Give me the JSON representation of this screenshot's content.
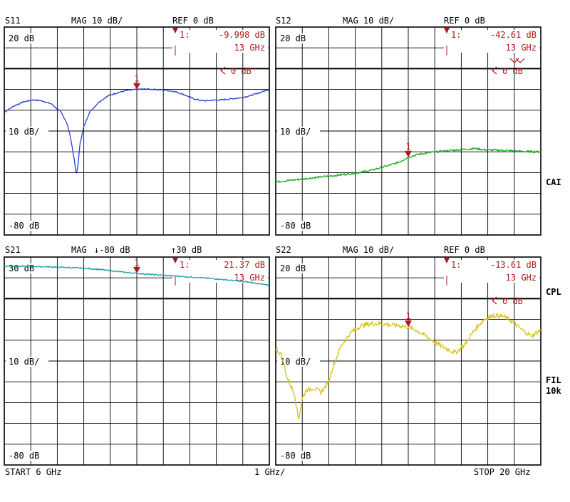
{
  "start_label": "START  6 GHz",
  "span_label": "1 GHz/",
  "stop_label": "STOP 20 GHz",
  "side_labels": [
    {
      "text": "CAI",
      "color": "#0aa000"
    },
    {
      "text": "CPL",
      "color": "#0aa000"
    },
    {
      "text": "FIL",
      "color": "#0aa000"
    },
    {
      "text": "10k",
      "color": "#0aa000"
    }
  ],
  "chart_data": [
    {
      "type": "line",
      "param": "S11",
      "format_label": "MAG 10 dB/",
      "ref_label": "REF 0 dB",
      "top_label": "20 dB",
      "mid_label": "10 dB/",
      "bottom_label": "-80 dB",
      "ref_marker_label": "0 dB",
      "marker_label": "1:",
      "marker_value": "-9.998 dB",
      "marker_freq": "13 GHz",
      "marker_number": "1",
      "color": "#2a3fd4",
      "ylim": [
        -80,
        20
      ],
      "xlim": [
        6,
        20
      ],
      "marker": {
        "x": 13,
        "y": -9.998
      },
      "x": [
        6,
        6.5,
        7,
        7.5,
        8,
        8.5,
        9,
        9.3,
        9.5,
        9.7,
        9.8,
        9.9,
        10.0,
        10.2,
        10.5,
        11,
        11.5,
        12,
        12.5,
        13,
        13.5,
        14,
        14.5,
        15,
        15.5,
        16,
        16.5,
        17,
        17.5,
        18,
        18.5,
        19,
        19.5,
        20
      ],
      "y": [
        -21,
        -18,
        -16,
        -15,
        -15.5,
        -17,
        -21,
        -26,
        -33,
        -44,
        -51,
        -46,
        -36,
        -28,
        -21,
        -16,
        -13,
        -11.5,
        -10.5,
        -10,
        -9.8,
        -10,
        -10.3,
        -11,
        -12.5,
        -14.5,
        -15.5,
        -15.2,
        -15,
        -14.5,
        -14,
        -13,
        -11.5,
        -10
      ]
    },
    {
      "type": "line",
      "param": "S12",
      "format_label": "MAG 10 dB/",
      "ref_label": "REF 0 dB",
      "top_label": "20 dB",
      "mid_label": "10 dB/",
      "bottom_label": "-80 dB",
      "ref_marker_label": "0 dB",
      "marker_label": "1:",
      "marker_value": "-42.61 dB",
      "marker_freq": "13 GHz",
      "marker_number": "1",
      "color": "#12a81a",
      "ylim": [
        -80,
        20
      ],
      "xlim": [
        6,
        20
      ],
      "marker": {
        "x": 13,
        "y": -42.61
      },
      "x": [
        6,
        7,
        8,
        9,
        10,
        11,
        12,
        12.5,
        13,
        13.5,
        14,
        15,
        16,
        16.5,
        17,
        18,
        19,
        20
      ],
      "y": [
        -54.5,
        -53.5,
        -52.5,
        -51.5,
        -50.5,
        -49,
        -46.5,
        -45,
        -42.6,
        -41.3,
        -40.5,
        -39.5,
        -38.8,
        -38.4,
        -39,
        -39.3,
        -39.8,
        -40
      ]
    },
    {
      "type": "line",
      "param": "S21",
      "format_label": "MAG",
      "scale_label": "↓-80 dB",
      "ref_label": "↑30 dB",
      "top_label": "30 dB",
      "mid_label": "10 dB/",
      "bottom_label": "-80 dB",
      "marker_label": "1:",
      "marker_value": "21.37 dB",
      "marker_freq": "13 GHz",
      "marker_number": "1",
      "color": "#12a0a8",
      "ylim": [
        -80,
        30
      ],
      "xlim": [
        6,
        20
      ],
      "marker": {
        "x": 13,
        "y": 21.37
      },
      "x": [
        6,
        7,
        8,
        9,
        10,
        11,
        12,
        13,
        14,
        15,
        16,
        17,
        18,
        19,
        20
      ],
      "y": [
        25.2,
        25.1,
        24.9,
        24.6,
        24.2,
        23.5,
        22.3,
        21.37,
        20.6,
        20.0,
        19.3,
        18.6,
        17.7,
        16.6,
        15.0
      ]
    },
    {
      "type": "line",
      "param": "S22",
      "format_label": "MAG 10 dB/",
      "ref_label": "REF 0 dB",
      "top_label": "20 dB",
      "mid_label": "10 dB/",
      "bottom_label": "-80 dB",
      "ref_marker_label": "0 dB",
      "marker_label": "1:",
      "marker_value": "-13.61 dB",
      "marker_freq": "13 GHz",
      "marker_number": "1",
      "color": "#d9c21a",
      "ylim": [
        -80,
        20
      ],
      "xlim": [
        6,
        20
      ],
      "marker": {
        "x": 13,
        "y": -13.61
      },
      "x": [
        6,
        6.3,
        6.6,
        7.0,
        7.2,
        7.4,
        7.6,
        8.0,
        8.4,
        8.8,
        9.0,
        9.5,
        10,
        10.5,
        11,
        11.5,
        12,
        12.5,
        13,
        13.5,
        14,
        14.5,
        15,
        15.5,
        16,
        16.5,
        17,
        17.5,
        18,
        18.5,
        19,
        19.5,
        20
      ],
      "y": [
        -24,
        -27,
        -38,
        -46,
        -58,
        -48,
        -44,
        -43,
        -45,
        -40,
        -33,
        -22,
        -16,
        -13,
        -12,
        -12,
        -12.5,
        -13,
        -13.61,
        -15.5,
        -18.5,
        -21.5,
        -24,
        -26,
        -22,
        -15,
        -10,
        -8,
        -8.5,
        -11,
        -15,
        -18,
        -15
      ]
    }
  ]
}
